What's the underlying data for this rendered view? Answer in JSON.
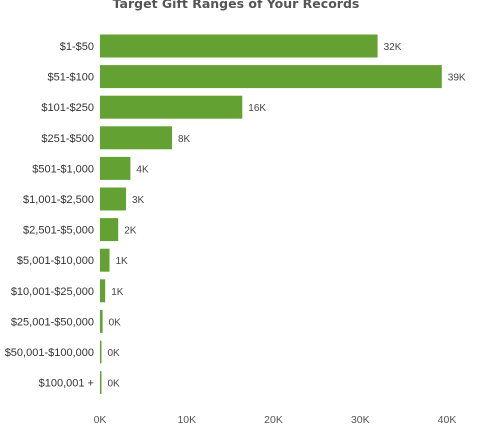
{
  "chart_data": {
    "type": "bar",
    "orientation": "horizontal",
    "title": "Target Gift Ranges of Your Records",
    "categories": [
      "$1-$50",
      "$51-$100",
      "$101-$250",
      "$251-$500",
      "$501-$1,000",
      "$1,001-$2,500",
      "$2,501-$5,000",
      "$5,001-$10,000",
      "$10,001-$25,000",
      "$25,001-$50,000",
      "$50,001-$100,000",
      "$100,001 +"
    ],
    "values": [
      32000,
      39400,
      16400,
      8300,
      3500,
      3000,
      2100,
      1100,
      600,
      300,
      150,
      60
    ],
    "data_labels": [
      "32K",
      "39K",
      "16K",
      "8K",
      "4K",
      "3K",
      "2K",
      "1K",
      "1K",
      "0K",
      "0K",
      "0K"
    ],
    "x_ticks": [
      0,
      10000,
      20000,
      30000,
      40000
    ],
    "x_tick_labels": [
      "0K",
      "10K",
      "20K",
      "30K",
      "40K"
    ],
    "xlim": [
      0,
      40000
    ],
    "bar_color": "#63a232",
    "grid": false,
    "legend": "none"
  }
}
